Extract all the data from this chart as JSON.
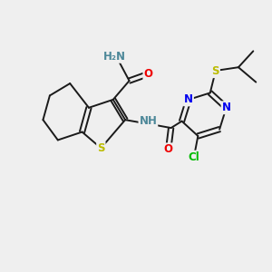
{
  "background_color": "#efefef",
  "bond_color": "#1a1a1a",
  "atom_colors": {
    "N": "#0000ee",
    "O": "#ee0000",
    "S": "#bbbb00",
    "Cl": "#00bb00",
    "H_label": "#4d8899",
    "C": "#1a1a1a"
  },
  "lw": 1.4,
  "fs": 8.5,
  "fs2": 7.5
}
